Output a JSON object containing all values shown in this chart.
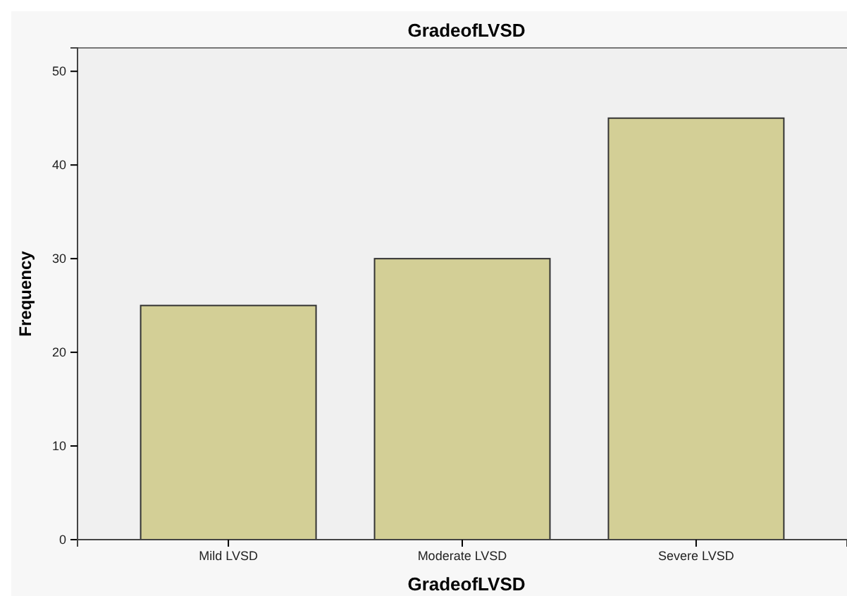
{
  "chart_data": {
    "type": "bar",
    "title": "GradeofLVSD",
    "xlabel": "GradeofLVSD",
    "ylabel": "Frequency",
    "categories": [
      "Mild LVSD",
      "Moderate LVSD",
      "Severe LVSD"
    ],
    "values": [
      25,
      30,
      45
    ],
    "color": "#d3cf96",
    "ylim": [
      0,
      52.5
    ],
    "yticks": [
      0,
      10,
      20,
      30,
      40,
      50
    ],
    "grid": false
  }
}
